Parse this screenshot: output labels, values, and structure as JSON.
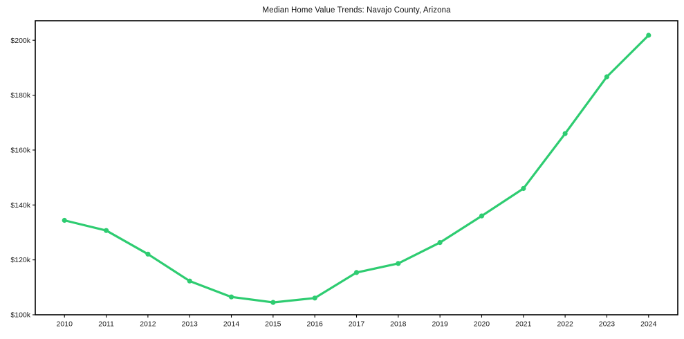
{
  "chart_data": {
    "type": "line",
    "title": "Median Home Value Trends: Navajo County, Arizona",
    "xlabel": "",
    "ylabel": "",
    "x": [
      2010,
      2011,
      2012,
      2013,
      2014,
      2015,
      2016,
      2017,
      2018,
      2019,
      2020,
      2021,
      2022,
      2023,
      2024
    ],
    "x_tick_labels": [
      "2010",
      "2011",
      "2012",
      "2013",
      "2014",
      "2015",
      "2016",
      "2017",
      "2018",
      "2019",
      "2020",
      "2021",
      "2022",
      "2023",
      "2024"
    ],
    "series": [
      {
        "name": "median-home-value",
        "values": [
          134400,
          130700,
          122100,
          112300,
          106500,
          104500,
          106100,
          115400,
          118700,
          126300,
          136000,
          146000,
          166000,
          186700,
          201800
        ],
        "color": "#2ecc71",
        "marker": "circle",
        "line_width": 3.2,
        "marker_radius": 3.6
      }
    ],
    "y_ticks": [
      100000,
      120000,
      140000,
      160000,
      180000,
      200000
    ],
    "y_tick_labels": [
      "$100k",
      "$120k",
      "$140k",
      "$160k",
      "$180k",
      "$200k"
    ],
    "ylim": [
      100000,
      207100
    ],
    "xlim": [
      2009.3,
      2024.7
    ],
    "grid": false,
    "legend_position": "none",
    "background_color": "#ffffff",
    "axis_color": "#000000",
    "text_color": "#1a1a1a"
  }
}
